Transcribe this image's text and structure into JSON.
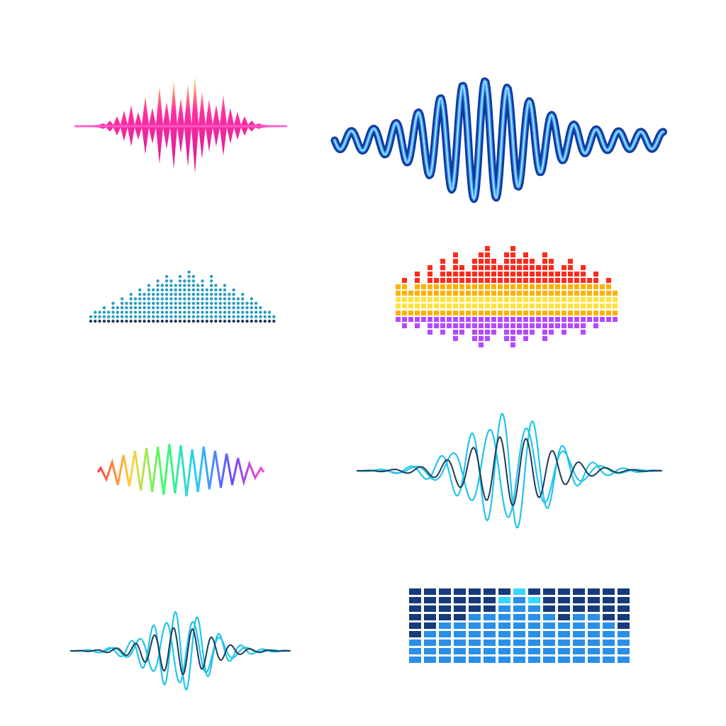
{
  "sheet": {
    "background": "#ffffff",
    "items": [
      {
        "name": "pink-spike-waveform-icon",
        "style": "spike-mirror",
        "colors": [
          "#ff2fa0",
          "#ffd23c",
          "#ff5fd0"
        ]
      },
      {
        "name": "blue-neon-sine-waveform-icon",
        "style": "neon-sine",
        "colors": [
          "#123a9c",
          "#3aa0ff",
          "#bfe6ff"
        ]
      },
      {
        "name": "teal-dot-equalizer-icon",
        "style": "dot-bars",
        "colors": [
          "#1f3a57",
          "#2a9bc0"
        ]
      },
      {
        "name": "fire-square-equalizer-icon",
        "style": "square-mirror-bars",
        "colors": [
          "#ff2a1a",
          "#ffb000",
          "#ffe23a",
          "#b34aff"
        ]
      },
      {
        "name": "rainbow-zigzag-waveform-icon",
        "style": "rainbow-zigzag",
        "colors": [
          "#ff3a3a",
          "#ffd23a",
          "#3aff6a",
          "#29c8ff",
          "#6a4aff",
          "#ff4acb"
        ]
      },
      {
        "name": "cyan-interference-waveform-icon",
        "style": "interference",
        "colors": [
          "#23c4ea",
          "#1f3a57"
        ]
      },
      {
        "name": "small-cyan-interference-waveform-icon",
        "style": "interference",
        "colors": [
          "#23c4ea",
          "#1f3a57"
        ]
      },
      {
        "name": "blue-grid-equalizer-icon",
        "style": "grid-bars",
        "colors": [
          "#173a7a",
          "#2a8fe6",
          "#38d7ff"
        ],
        "columns": 15,
        "rows": 9,
        "levels": [
          0.33,
          0.45,
          0.55,
          0.6,
          0.7,
          0.72,
          0.9,
          1.0,
          0.88,
          0.65,
          0.6,
          0.7,
          0.68,
          0.5,
          0.4
        ]
      }
    ]
  }
}
